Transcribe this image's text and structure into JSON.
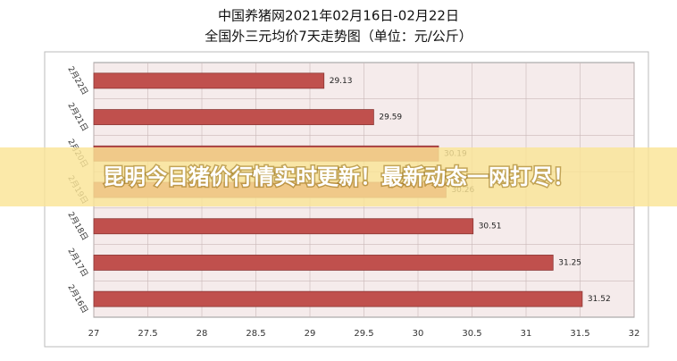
{
  "chart_data": {
    "type": "barh",
    "title": "中国养猪网2021年02月16日-02月22日",
    "subtitle": "全国外三元均价7天走势图（单位：元/公斤）",
    "categories": [
      "2月22日",
      "2月21日",
      "2月20日",
      "2月19日",
      "2月18日",
      "2月17日",
      "2月16日"
    ],
    "values": [
      29.13,
      29.59,
      30.19,
      30.26,
      30.51,
      31.25,
      31.52
    ],
    "color": "#c0504d",
    "xlim": [
      27,
      32
    ],
    "xticks": [
      27,
      27.5,
      28,
      28.5,
      29,
      29.5,
      30,
      30.5,
      31,
      31.5,
      32
    ],
    "grid": true
  },
  "banner": "昆明今日猪价行情实时更新！最新动态一网打尽！"
}
